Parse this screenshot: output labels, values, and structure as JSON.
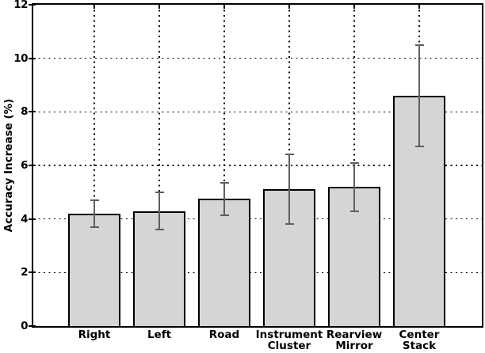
{
  "chart_data": {
    "type": "bar",
    "title": "",
    "ylabel": "Accuracy Increase (%)",
    "xlabel": "",
    "categories": [
      "Right",
      "Left",
      "Road",
      "Instrument Cluster",
      "Rearview Mirror",
      "Center Stack"
    ],
    "values": [
      4.2,
      4.3,
      4.75,
      5.1,
      5.2,
      8.6
    ],
    "errors": [
      0.5,
      0.7,
      0.6,
      1.3,
      0.9,
      1.9
    ],
    "ylim": [
      0,
      12
    ],
    "yticks": [
      0,
      2,
      4,
      6,
      8,
      10,
      12
    ],
    "grid": "dotted horizontal and vertical gridlines",
    "legend": "none",
    "bar_fill_color": "#d5d5d5",
    "bar_edge_color": "#000000",
    "error_bar_color": "#5f5f5f",
    "axis_color": "#000000",
    "background_color": "#ffffff"
  }
}
